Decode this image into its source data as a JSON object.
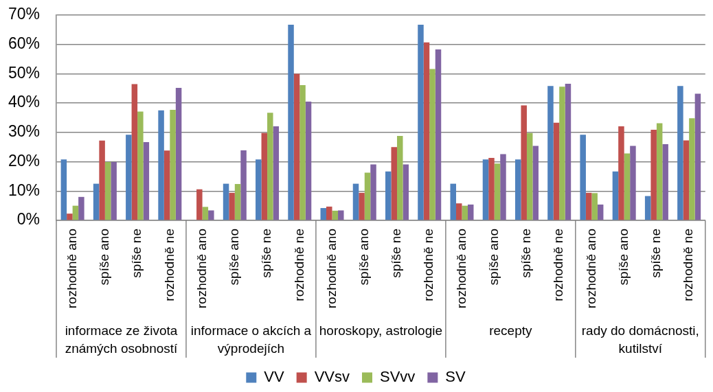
{
  "chart_data": {
    "type": "bar",
    "categories": [
      "rozhodně ano",
      "spíše ano",
      "spíše ne",
      "rozhodně ne",
      "rozhodně ano",
      "spíše ano",
      "spíše ne",
      "rozhodně ne",
      "rozhodně ano",
      "spíše ano",
      "spíše ne",
      "rozhodně ne",
      "rozhodně ano",
      "spíše ano",
      "spíše ne",
      "rozhodně ne",
      "rozhodně ano",
      "spíše ano",
      "spíše ne",
      "rozhodně ne"
    ],
    "annotations": [
      "informace ze života známých osobností",
      "informace o akcích a výprodejích",
      "horoskopy, astrologie",
      "recepty",
      "rady do domácnosti, kutilství"
    ],
    "series": [
      {
        "name": "VV",
        "color": "#4f81bd",
        "values": [
          20.8,
          12.5,
          29.2,
          37.5,
          0,
          12.5,
          20.8,
          66.7,
          4.2,
          12.5,
          16.7,
          66.7,
          12.5,
          20.8,
          20.8,
          45.8,
          29.2,
          16.7,
          8.3,
          45.8
        ]
      },
      {
        "name": "VVsv",
        "color": "#c0504d",
        "values": [
          2.3,
          27.2,
          46.5,
          23.8,
          10.6,
          9.4,
          29.8,
          50.0,
          4.7,
          9.4,
          25.0,
          60.7,
          5.8,
          21.3,
          39.2,
          33.3,
          9.4,
          32.1,
          30.9,
          27.3
        ]
      },
      {
        "name": "SVvv",
        "color": "#9bbb59",
        "values": [
          5.0,
          19.9,
          37.1,
          37.7,
          4.6,
          12.4,
          36.7,
          46.1,
          3.3,
          16.3,
          28.8,
          51.6,
          5.0,
          19.4,
          29.8,
          45.6,
          9.3,
          22.8,
          33.1,
          34.8
        ]
      },
      {
        "name": "SV",
        "color": "#8064a2",
        "values": [
          8.0,
          19.9,
          26.7,
          45.2,
          3.4,
          23.9,
          32.1,
          40.5,
          3.4,
          19.1,
          19.1,
          58.3,
          5.4,
          22.6,
          25.4,
          46.6,
          5.4,
          25.4,
          26.0,
          43.2
        ]
      }
    ],
    "ylim": [
      0,
      70
    ],
    "yticks": [
      {
        "value": 0,
        "label": "0%"
      },
      {
        "value": 10,
        "label": "10%"
      },
      {
        "value": 20,
        "label": "20%"
      },
      {
        "value": 30,
        "label": "30%"
      },
      {
        "value": 40,
        "label": "40%"
      },
      {
        "value": 50,
        "label": "50%"
      },
      {
        "value": 60,
        "label": "60%"
      },
      {
        "value": 70,
        "label": "70%"
      }
    ],
    "grid": "y",
    "legend": "bottom"
  }
}
